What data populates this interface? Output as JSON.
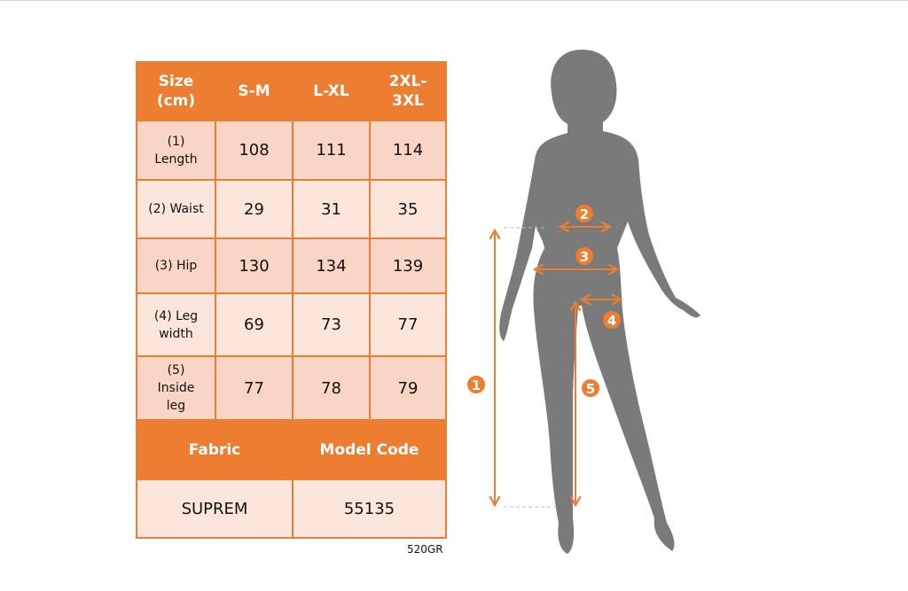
{
  "table": {
    "header": [
      "Size (cm)",
      "S-M",
      "L-XL",
      "2XL-3XL"
    ],
    "header_lines": [
      [
        "Size",
        "(cm)"
      ],
      [
        "S-M"
      ],
      [
        "L-XL"
      ],
      [
        "2XL-",
        "3XL"
      ]
    ],
    "rows": [
      {
        "label_lines": [
          "(1)",
          "Length"
        ],
        "values": [
          "108",
          "111",
          "114"
        ]
      },
      {
        "label_lines": [
          "(2) Waist"
        ],
        "values": [
          "29",
          "31",
          "35"
        ]
      },
      {
        "label_lines": [
          "(3) Hip"
        ],
        "values": [
          "130",
          "134",
          "139"
        ]
      },
      {
        "label_lines": [
          "(4) Leg",
          "width"
        ],
        "values": [
          "69",
          "73",
          "77"
        ]
      },
      {
        "label_lines": [
          "(5)",
          "Inside",
          "leg"
        ],
        "values": [
          "77",
          "78",
          "79"
        ]
      }
    ],
    "fabric_label": "Fabric",
    "model_code_label": "Model Code",
    "fabric_value": "SUPREM",
    "model_code_value": "55135"
  },
  "footer_code": "520GR",
  "figure": {
    "markers": [
      "1",
      "2",
      "3",
      "4",
      "5"
    ]
  },
  "colors": {
    "accent": "#ED7D31",
    "row_dark": "#F8D5C4",
    "row_light": "#FCE6DC",
    "silhouette": "#7A7A7A"
  }
}
